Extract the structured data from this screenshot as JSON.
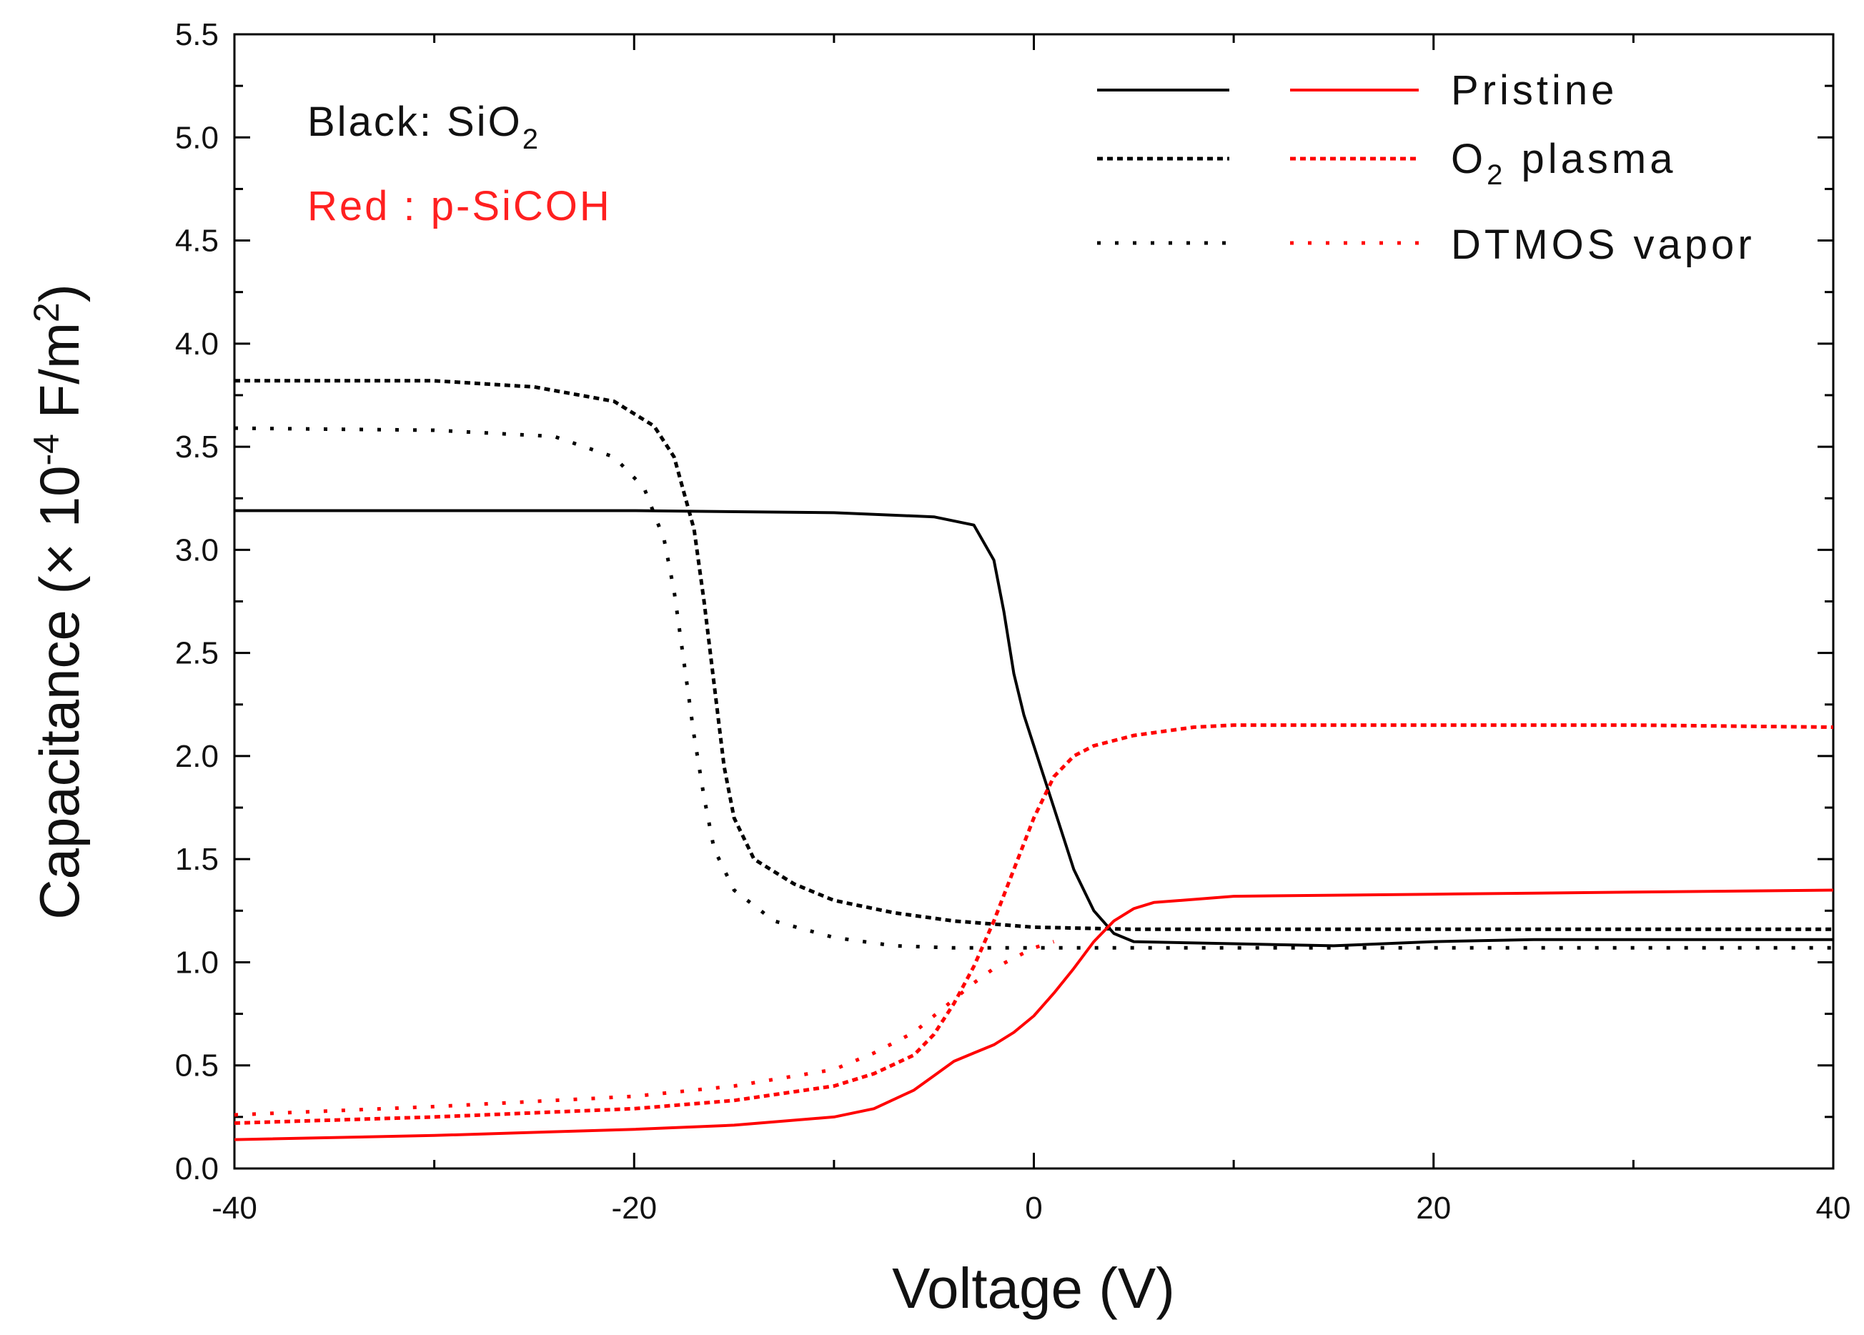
{
  "chart_data": {
    "type": "line",
    "xlabel": "Voltage  (V)",
    "ylabel_prefix": "Capacitance (× 10",
    "ylabel_exp": "-4",
    "ylabel_unit": " F/m",
    "ylabel_unit_exp": "2",
    "ylabel_suffix": ")",
    "xlim": [
      -40,
      40
    ],
    "ylim": [
      0.0,
      5.5
    ],
    "x_ticks": [
      -40,
      -20,
      0,
      20,
      40
    ],
    "x_tick_labels": [
      "-40",
      "-20",
      "0",
      "20",
      "40"
    ],
    "y_ticks": [
      0.0,
      0.5,
      1.0,
      1.5,
      2.0,
      2.5,
      3.0,
      3.5,
      4.0,
      4.5,
      5.0,
      5.5
    ],
    "y_tick_labels": [
      "0.0",
      "0.5",
      "1.0",
      "1.5",
      "2.0",
      "2.5",
      "3.0",
      "3.5",
      "4.0",
      "4.5",
      "5.0",
      "5.5"
    ],
    "annotations": {
      "black_prefix": "Black: SiO",
      "black_sub": "2",
      "red_text": "Red  : p-SiCOH"
    },
    "legend": {
      "position": "top-right",
      "entries": [
        {
          "label": "Pristine",
          "style": "solid"
        },
        {
          "label_main": "O",
          "label_sub": "2",
          "label_rest": " plasma",
          "style": "dash"
        },
        {
          "label": "DTMOS vapor",
          "style": "dot"
        }
      ]
    },
    "series": [
      {
        "name": "SiO2 Pristine",
        "color": "#000000",
        "style": "solid",
        "x": [
          -40,
          -30,
          -20,
          -10,
          -5,
          -3,
          -2,
          -1.5,
          -1,
          -0.5,
          0,
          1,
          2,
          3,
          4,
          5,
          10,
          15,
          20,
          25,
          30,
          35,
          40
        ],
        "y": [
          3.19,
          3.19,
          3.19,
          3.18,
          3.16,
          3.12,
          2.95,
          2.7,
          2.4,
          2.2,
          2.05,
          1.75,
          1.45,
          1.25,
          1.14,
          1.1,
          1.09,
          1.08,
          1.1,
          1.11,
          1.11,
          1.11,
          1.11
        ]
      },
      {
        "name": "SiO2 O2 plasma",
        "color": "#000000",
        "style": "dash",
        "x": [
          -40,
          -30,
          -25,
          -21,
          -19,
          -18,
          -17,
          -16.5,
          -16,
          -15.5,
          -15,
          -14,
          -12,
          -10,
          -7,
          -4,
          0,
          5,
          10,
          20,
          30,
          40
        ],
        "y": [
          3.82,
          3.82,
          3.79,
          3.72,
          3.6,
          3.45,
          3.1,
          2.75,
          2.35,
          1.95,
          1.7,
          1.5,
          1.38,
          1.3,
          1.24,
          1.2,
          1.17,
          1.16,
          1.16,
          1.16,
          1.16,
          1.16
        ]
      },
      {
        "name": "SiO2 DTMOS vapor",
        "color": "#000000",
        "style": "dot",
        "x": [
          -40,
          -30,
          -24,
          -21,
          -19.5,
          -18.5,
          -18,
          -17.5,
          -17,
          -16.5,
          -16,
          -15,
          -13,
          -10,
          -7,
          -4,
          0,
          5,
          10,
          20,
          30,
          40
        ],
        "y": [
          3.59,
          3.58,
          3.55,
          3.45,
          3.3,
          3.05,
          2.8,
          2.45,
          2.1,
          1.8,
          1.55,
          1.35,
          1.2,
          1.12,
          1.08,
          1.07,
          1.07,
          1.07,
          1.07,
          1.07,
          1.07,
          1.07
        ]
      },
      {
        "name": "p-SiCOH Pristine",
        "color": "#ff0000",
        "style": "solid",
        "x": [
          -40,
          -30,
          -20,
          -15,
          -10,
          -8,
          -6,
          -5,
          -4,
          -3,
          -2,
          -1,
          0,
          1,
          2,
          3,
          4,
          5,
          6,
          10,
          20,
          30,
          40
        ],
        "y": [
          0.14,
          0.16,
          0.19,
          0.21,
          0.25,
          0.29,
          0.38,
          0.45,
          0.52,
          0.56,
          0.6,
          0.66,
          0.74,
          0.85,
          0.97,
          1.1,
          1.2,
          1.26,
          1.29,
          1.32,
          1.33,
          1.34,
          1.35
        ]
      },
      {
        "name": "p-SiCOH O2 plasma",
        "color": "#ff0000",
        "style": "dash",
        "x": [
          -40,
          -30,
          -20,
          -15,
          -10,
          -8,
          -6,
          -5,
          -4,
          -3,
          -2,
          -1,
          0,
          1,
          2,
          3,
          5,
          8,
          10,
          20,
          30,
          40
        ],
        "y": [
          0.22,
          0.25,
          0.29,
          0.33,
          0.4,
          0.46,
          0.55,
          0.65,
          0.8,
          0.98,
          1.2,
          1.45,
          1.7,
          1.9,
          2.0,
          2.05,
          2.1,
          2.14,
          2.15,
          2.15,
          2.15,
          2.14
        ]
      },
      {
        "name": "p-SiCOH DTMOS vapor",
        "color": "#ff0000",
        "style": "dot",
        "x": [
          -40,
          -30,
          -20,
          -15,
          -10,
          -8,
          -6,
          -5,
          -4,
          -3,
          -2,
          -1,
          0,
          1
        ],
        "y": [
          0.26,
          0.3,
          0.35,
          0.4,
          0.48,
          0.56,
          0.66,
          0.74,
          0.82,
          0.9,
          0.97,
          1.02,
          1.07,
          1.1
        ]
      }
    ]
  }
}
